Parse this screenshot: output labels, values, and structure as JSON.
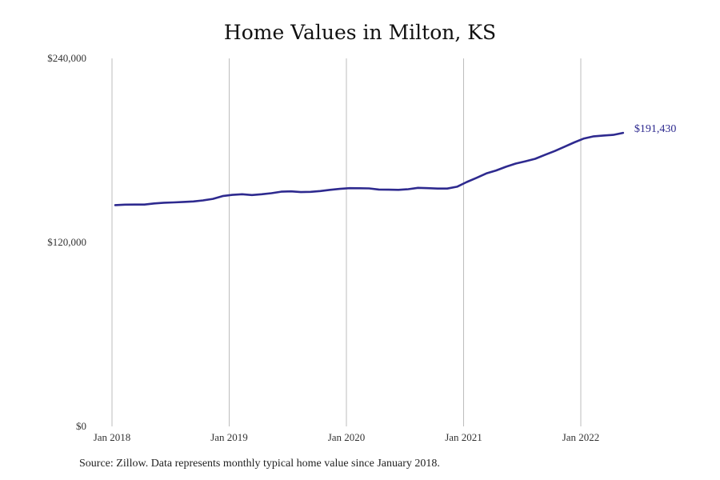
{
  "chart_data": {
    "type": "line",
    "title": "Home Values in Milton, KS",
    "xlabel": "",
    "ylabel": "",
    "ylim": [
      0,
      240000
    ],
    "y_ticks": [
      {
        "value": 0,
        "label": "$0"
      },
      {
        "value": 120000,
        "label": "$120,000"
      },
      {
        "value": 240000,
        "label": "$240,000"
      }
    ],
    "x_ticks": [
      {
        "value": 0,
        "label": "Jan 2018"
      },
      {
        "value": 12,
        "label": "Jan 2019"
      },
      {
        "value": 24,
        "label": "Jan 2020"
      },
      {
        "value": 36,
        "label": "Jan 2021"
      },
      {
        "value": 48,
        "label": "Jan 2022"
      }
    ],
    "grid": "vertical",
    "color": "#2e2a8f",
    "series": [
      {
        "x": [
          "Jan 2018",
          "Feb 2018",
          "Mar 2018",
          "Apr 2018",
          "May 2018",
          "Jun 2018",
          "Jul 2018",
          "Aug 2018",
          "Sep 2018",
          "Oct 2018",
          "Nov 2018",
          "Dec 2018",
          "Jan 2019",
          "Feb 2019",
          "Mar 2019",
          "Apr 2019",
          "May 2019",
          "Jun 2019",
          "Jul 2019",
          "Aug 2019",
          "Sep 2019",
          "Oct 2019",
          "Nov 2019",
          "Dec 2019",
          "Jan 2020",
          "Feb 2020",
          "Mar 2020",
          "Apr 2020",
          "May 2020",
          "Jun 2020",
          "Jul 2020",
          "Aug 2020",
          "Sep 2020",
          "Oct 2020",
          "Nov 2020",
          "Dec 2020",
          "Jan 2021",
          "Feb 2021",
          "Mar 2021",
          "Apr 2021",
          "May 2021",
          "Jun 2021",
          "Jul 2021",
          "Aug 2021",
          "Sep 2021",
          "Oct 2021",
          "Nov 2021",
          "Dec 2021",
          "Jan 2022",
          "Feb 2022",
          "Mar 2022",
          "Apr 2022",
          "May 2022"
        ],
        "values": [
          144300,
          144600,
          144700,
          144700,
          145400,
          145900,
          146100,
          146400,
          146700,
          147400,
          148400,
          150200,
          151000,
          151400,
          150900,
          151400,
          152100,
          153100,
          153300,
          152800,
          153000,
          153500,
          154300,
          154900,
          155400,
          155300,
          155200,
          154500,
          154400,
          154300,
          154700,
          155600,
          155400,
          155100,
          155100,
          156300,
          159400,
          162100,
          165000,
          166900,
          169300,
          171400,
          172900,
          174500,
          177100,
          179600,
          182400,
          185200,
          187800,
          189200,
          189700,
          190100,
          191430
        ]
      }
    ],
    "end_label": "$191,430",
    "source_note": "Source: Zillow. Data represents monthly typical home value since January 2018."
  }
}
